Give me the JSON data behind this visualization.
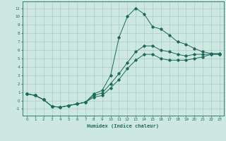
{
  "xlabel": "Humidex (Indice chaleur)",
  "xlim": [
    -0.5,
    23.5
  ],
  "ylim": [
    -1.8,
    11.8
  ],
  "xticks": [
    0,
    1,
    2,
    3,
    4,
    5,
    6,
    7,
    8,
    9,
    10,
    11,
    12,
    13,
    14,
    15,
    16,
    17,
    18,
    19,
    20,
    21,
    22,
    23
  ],
  "yticks": [
    -1,
    0,
    1,
    2,
    3,
    4,
    5,
    6,
    7,
    8,
    9,
    10,
    11
  ],
  "bg_color": "#cce8e0",
  "line_color": "#1a6b5a",
  "grid_color": "#aaccc4",
  "line1_x": [
    0,
    1,
    2,
    3,
    4,
    5,
    6,
    7,
    8,
    9,
    10,
    11,
    12,
    13,
    14,
    15,
    16,
    17,
    18,
    19,
    20,
    21,
    22,
    23
  ],
  "line1_y": [
    0.8,
    0.6,
    0.1,
    -0.7,
    -0.8,
    -0.6,
    -0.4,
    -0.2,
    0.8,
    1.2,
    3.0,
    7.5,
    10.0,
    11.0,
    10.3,
    8.8,
    8.5,
    7.8,
    7.0,
    6.7,
    6.2,
    5.8,
    5.6,
    5.6
  ],
  "line2_x": [
    0,
    1,
    2,
    3,
    4,
    5,
    6,
    7,
    8,
    9,
    10,
    11,
    12,
    13,
    14,
    15,
    16,
    17,
    18,
    19,
    20,
    21,
    22,
    23
  ],
  "line2_y": [
    0.8,
    0.6,
    0.1,
    -0.7,
    -0.8,
    -0.6,
    -0.4,
    -0.2,
    0.6,
    0.9,
    2.0,
    3.2,
    4.5,
    5.8,
    6.5,
    6.5,
    6.0,
    5.8,
    5.5,
    5.3,
    5.5,
    5.5,
    5.5,
    5.5
  ],
  "line3_x": [
    0,
    1,
    2,
    3,
    4,
    5,
    6,
    7,
    8,
    9,
    10,
    11,
    12,
    13,
    14,
    15,
    16,
    17,
    18,
    19,
    20,
    21,
    22,
    23
  ],
  "line3_y": [
    0.8,
    0.6,
    0.1,
    -0.7,
    -0.8,
    -0.6,
    -0.4,
    -0.2,
    0.4,
    0.6,
    1.5,
    2.5,
    3.8,
    4.8,
    5.5,
    5.5,
    5.0,
    4.8,
    4.8,
    4.8,
    5.0,
    5.2,
    5.5,
    5.5
  ]
}
